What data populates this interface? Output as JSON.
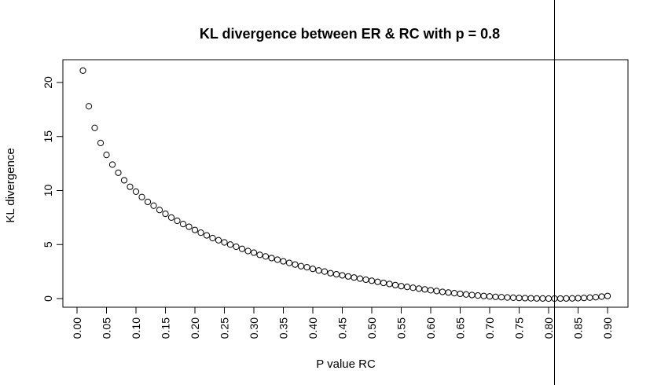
{
  "chart_data": {
    "type": "scatter",
    "title": "KL divergence between ER & RC with p = 0.8",
    "xlabel": "P value RC",
    "ylabel": "KL divergence",
    "xlim": [
      -0.01,
      0.91
    ],
    "ylim": [
      -0.8,
      22.2
    ],
    "x_ticks": [
      "0.00",
      "0.05",
      "0.10",
      "0.15",
      "0.20",
      "0.25",
      "0.30",
      "0.35",
      "0.40",
      "0.45",
      "0.50",
      "0.55",
      "0.60",
      "0.65",
      "0.70",
      "0.75",
      "0.80",
      "0.85",
      "0.90"
    ],
    "y_ticks": [
      "0",
      "5",
      "10",
      "15",
      "20"
    ],
    "vline_x": 0.81,
    "marker": "open-circle",
    "grid": false,
    "points": {
      "x": [
        0.01,
        0.02,
        0.03,
        0.04,
        0.05,
        0.06,
        0.07,
        0.08,
        0.09,
        0.1,
        0.11,
        0.12,
        0.13,
        0.14,
        0.15,
        0.16,
        0.17,
        0.18,
        0.19,
        0.2,
        0.21,
        0.22,
        0.23,
        0.24,
        0.25,
        0.26,
        0.27,
        0.28,
        0.29,
        0.3,
        0.31,
        0.32,
        0.33,
        0.34,
        0.35,
        0.36,
        0.37,
        0.38,
        0.39,
        0.4,
        0.41,
        0.42,
        0.43,
        0.44,
        0.45,
        0.46,
        0.47,
        0.48,
        0.49,
        0.5,
        0.51,
        0.52,
        0.53,
        0.54,
        0.55,
        0.56,
        0.57,
        0.58,
        0.59,
        0.6,
        0.61,
        0.62,
        0.63,
        0.64,
        0.65,
        0.66,
        0.67,
        0.68,
        0.69,
        0.7,
        0.71,
        0.72,
        0.73,
        0.74,
        0.75,
        0.76,
        0.77,
        0.78,
        0.79,
        0.8,
        0.81,
        0.82,
        0.83,
        0.84,
        0.85,
        0.86,
        0.87,
        0.88,
        0.89,
        0.9
      ],
      "y": [
        21.1,
        17.8,
        15.8,
        14.4,
        13.3,
        12.4,
        11.65,
        10.95,
        10.35,
        9.9,
        9.4,
        8.95,
        8.6,
        8.2,
        7.85,
        7.5,
        7.2,
        6.9,
        6.65,
        6.35,
        6.1,
        5.85,
        5.6,
        5.4,
        5.2,
        5.0,
        4.8,
        4.6,
        4.4,
        4.25,
        4.05,
        3.9,
        3.75,
        3.6,
        3.45,
        3.3,
        3.15,
        3.0,
        2.9,
        2.75,
        2.6,
        2.5,
        2.35,
        2.25,
        2.15,
        2.05,
        1.95,
        1.85,
        1.75,
        1.65,
        1.55,
        1.45,
        1.35,
        1.25,
        1.15,
        1.08,
        1.0,
        0.92,
        0.85,
        0.77,
        0.7,
        0.62,
        0.56,
        0.5,
        0.44,
        0.38,
        0.33,
        0.28,
        0.24,
        0.2,
        0.16,
        0.13,
        0.1,
        0.08,
        0.06,
        0.04,
        0.025,
        0.015,
        0.01,
        0.0,
        0.0,
        0.005,
        0.01,
        0.02,
        0.035,
        0.06,
        0.09,
        0.13,
        0.18,
        0.24
      ]
    }
  }
}
